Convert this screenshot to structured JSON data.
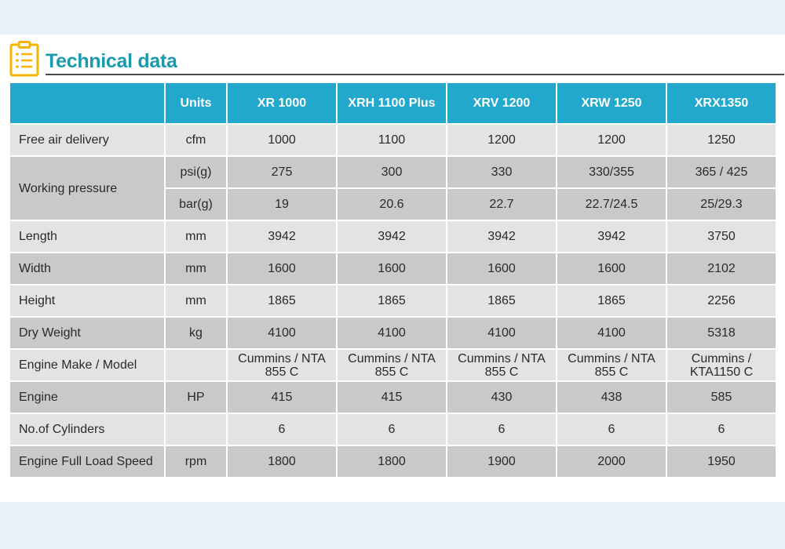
{
  "title": "Technical data",
  "colors": {
    "header_bg": "#23a8cd",
    "title": "#1b9aad",
    "icon": "#f4b400"
  },
  "columns": [
    "",
    "Units",
    "XR 1000",
    "XRH 1100 Plus",
    "XRV 1200",
    "XRW 1250",
    "XRX1350"
  ],
  "rows": {
    "free_air": {
      "label": "Free air delivery",
      "unit": "cfm",
      "values": [
        "1000",
        "1100",
        "1200",
        "1200",
        "1250"
      ]
    },
    "working_pressure": {
      "label": "Working pressure",
      "psi": {
        "unit": "psi(g)",
        "values": [
          "275",
          "300",
          "330",
          "330/355",
          "365 /  425"
        ]
      },
      "bar": {
        "unit": "bar(g)",
        "values": [
          "19",
          "20.6",
          "22.7",
          "22.7/24.5",
          "25/29.3"
        ]
      }
    },
    "length": {
      "label": "Length",
      "unit": "mm",
      "values": [
        "3942",
        "3942",
        "3942",
        "3942",
        "3750"
      ]
    },
    "width": {
      "label": "Width",
      "unit": "mm",
      "values": [
        "1600",
        "1600",
        "1600",
        "1600",
        "2102"
      ]
    },
    "height": {
      "label": "Height",
      "unit": "mm",
      "values": [
        "1865",
        "1865",
        "1865",
        "1865",
        "2256"
      ]
    },
    "dry_weight": {
      "label": "Dry Weight",
      "unit": "kg",
      "values": [
        "4100",
        "4100",
        "4100",
        "4100",
        "5318"
      ]
    },
    "engine_make": {
      "label": "Engine Make /  Model",
      "unit": "",
      "values": [
        {
          "l1": "Cummins /  NTA",
          "l2": "855 C"
        },
        {
          "l1": "Cummins /  NTA",
          "l2": "855 C"
        },
        {
          "l1": "Cummins /  NTA",
          "l2": "855 C"
        },
        {
          "l1": "Cummins /  NTA",
          "l2": "855 C"
        },
        {
          "l1": "Cummins /",
          "l2": "KTA1150 C"
        }
      ]
    },
    "engine": {
      "label": "Engine",
      "unit": "HP",
      "values": [
        "415",
        "415",
        "430",
        "438",
        "585"
      ]
    },
    "cylinders": {
      "label": "No.of Cylinders",
      "unit": "",
      "values": [
        "6",
        "6",
        "6",
        "6",
        "6"
      ]
    },
    "speed": {
      "label": "Engine Full Load Speed",
      "unit": "rpm",
      "values": [
        "1800",
        "1800",
        "1900",
        "2000",
        "1950"
      ]
    }
  }
}
